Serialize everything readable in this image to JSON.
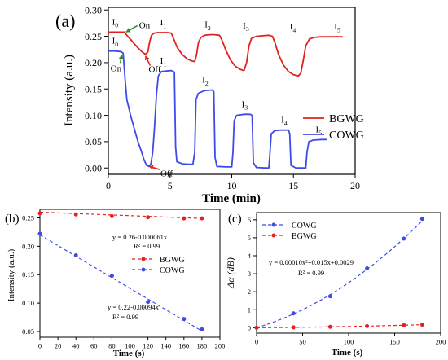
{
  "panels": {
    "a": {
      "label": "(a)"
    },
    "b": {
      "label": "(b)"
    },
    "c": {
      "label": "(c)"
    }
  },
  "colors": {
    "red": "#e3221f",
    "blue": "#3f4be8",
    "green": "#2e8b2e",
    "black": "#000000"
  },
  "chart_data": [
    {
      "id": "a",
      "type": "line",
      "xlabel": "Time (min)",
      "ylabel": "Intensity (a.u.)",
      "xlim": [
        0,
        20
      ],
      "ylim": [
        -0.012,
        0.305
      ],
      "xticks": [
        0,
        5,
        10,
        15,
        20
      ],
      "yticks": [
        0.0,
        0.05,
        0.1,
        0.15,
        0.2,
        0.25,
        0.3
      ],
      "ytick_labels": [
        "0.00",
        "0.05",
        "0.10",
        "0.15",
        "0.20",
        "0.25",
        "0.30"
      ],
      "legend_position": "right",
      "series": [
        {
          "name": "BGWG",
          "color": "#e3221f",
          "points": [
            [
              0,
              0.258
            ],
            [
              0.5,
              0.258
            ],
            [
              1.0,
              0.258
            ],
            [
              1.3,
              0.258
            ],
            [
              1.5,
              0.252
            ],
            [
              1.8,
              0.244
            ],
            [
              2.1,
              0.236
            ],
            [
              2.4,
              0.228
            ],
            [
              2.7,
              0.221
            ],
            [
              3.0,
              0.216
            ],
            [
              3.2,
              0.22
            ],
            [
              3.35,
              0.24
            ],
            [
              3.5,
              0.252
            ],
            [
              3.7,
              0.256
            ],
            [
              4.0,
              0.257
            ],
            [
              4.4,
              0.257
            ],
            [
              4.8,
              0.257
            ],
            [
              5.1,
              0.256
            ],
            [
              5.3,
              0.245
            ],
            [
              5.6,
              0.228
            ],
            [
              6.0,
              0.215
            ],
            [
              6.4,
              0.207
            ],
            [
              6.8,
              0.203
            ],
            [
              7.0,
              0.202
            ],
            [
              7.15,
              0.215
            ],
            [
              7.3,
              0.238
            ],
            [
              7.5,
              0.248
            ],
            [
              7.8,
              0.252
            ],
            [
              8.2,
              0.253
            ],
            [
              8.6,
              0.253
            ],
            [
              9.0,
              0.252
            ],
            [
              9.2,
              0.243
            ],
            [
              9.5,
              0.225
            ],
            [
              9.9,
              0.205
            ],
            [
              10.3,
              0.193
            ],
            [
              10.7,
              0.187
            ],
            [
              11.0,
              0.185
            ],
            [
              11.2,
              0.2
            ],
            [
              11.4,
              0.232
            ],
            [
              11.6,
              0.246
            ],
            [
              12.0,
              0.25
            ],
            [
              12.5,
              0.251
            ],
            [
              13.0,
              0.252
            ],
            [
              13.3,
              0.25
            ],
            [
              13.5,
              0.238
            ],
            [
              13.8,
              0.215
            ],
            [
              14.2,
              0.195
            ],
            [
              14.6,
              0.183
            ],
            [
              15.0,
              0.177
            ],
            [
              15.4,
              0.175
            ],
            [
              15.6,
              0.18
            ],
            [
              15.8,
              0.205
            ],
            [
              16.0,
              0.232
            ],
            [
              16.3,
              0.245
            ],
            [
              16.7,
              0.248
            ],
            [
              17.2,
              0.249
            ],
            [
              18.0,
              0.249
            ],
            [
              19.0,
              0.249
            ]
          ]
        },
        {
          "name": "COWG",
          "color": "#3f4be8",
          "points": [
            [
              0,
              0.222
            ],
            [
              0.5,
              0.222
            ],
            [
              1.0,
              0.221
            ],
            [
              1.2,
              0.218
            ],
            [
              1.35,
              0.17
            ],
            [
              1.5,
              0.13
            ],
            [
              1.8,
              0.1
            ],
            [
              2.1,
              0.075
            ],
            [
              2.4,
              0.05
            ],
            [
              2.7,
              0.03
            ],
            [
              2.9,
              0.015
            ],
            [
              3.1,
              0.005
            ],
            [
              3.3,
              0.003
            ],
            [
              3.45,
              0.008
            ],
            [
              3.6,
              0.03
            ],
            [
              3.75,
              0.08
            ],
            [
              3.9,
              0.14
            ],
            [
              4.05,
              0.175
            ],
            [
              4.3,
              0.183
            ],
            [
              4.7,
              0.184
            ],
            [
              5.1,
              0.185
            ],
            [
              5.35,
              0.182
            ],
            [
              5.45,
              0.04
            ],
            [
              5.55,
              0.012
            ],
            [
              6.0,
              0.008
            ],
            [
              6.5,
              0.007
            ],
            [
              6.85,
              0.007
            ],
            [
              7.0,
              0.03
            ],
            [
              7.1,
              0.13
            ],
            [
              7.3,
              0.142
            ],
            [
              7.8,
              0.147
            ],
            [
              8.4,
              0.148
            ],
            [
              8.55,
              0.145
            ],
            [
              8.65,
              0.02
            ],
            [
              8.8,
              0.003
            ],
            [
              9.5,
              0.002
            ],
            [
              10.0,
              0.002
            ],
            [
              10.1,
              0.03
            ],
            [
              10.2,
              0.09
            ],
            [
              10.4,
              0.1
            ],
            [
              11.0,
              0.102
            ],
            [
              11.5,
              0.102
            ],
            [
              11.65,
              0.1
            ],
            [
              11.75,
              0.01
            ],
            [
              12.0,
              0.001
            ],
            [
              12.7,
              0.0
            ],
            [
              13.0,
              0.0
            ],
            [
              13.1,
              0.03
            ],
            [
              13.2,
              0.065
            ],
            [
              13.5,
              0.071
            ],
            [
              14.0,
              0.072
            ],
            [
              14.6,
              0.072
            ],
            [
              14.7,
              0.065
            ],
            [
              14.8,
              0.005
            ],
            [
              15.2,
              0.0
            ],
            [
              15.8,
              0.0
            ],
            [
              16.0,
              0.0
            ],
            [
              16.1,
              0.03
            ],
            [
              16.25,
              0.05
            ],
            [
              16.6,
              0.053
            ],
            [
              17.3,
              0.054
            ],
            [
              17.7,
              0.054
            ]
          ]
        }
      ],
      "annotations": {
        "red_levels": [
          {
            "base": "I",
            "sub": "0",
            "x": 0.5,
            "y": 0.258
          },
          {
            "base": "I",
            "sub": "1",
            "x": 4.4,
            "y": 0.257
          },
          {
            "base": "I",
            "sub": "2",
            "x": 8.0,
            "y": 0.253
          },
          {
            "base": "I",
            "sub": "3",
            "x": 11.1,
            "y": 0.251
          },
          {
            "base": "I",
            "sub": "4",
            "x": 14.9,
            "y": 0.249
          },
          {
            "base": "I",
            "sub": "5",
            "x": 18.5,
            "y": 0.249
          }
        ],
        "blue_levels": [
          {
            "base": "I",
            "sub": "0",
            "x": 0.5,
            "y": 0.222
          },
          {
            "base": "I",
            "sub": "1",
            "x": 4.4,
            "y": 0.184
          },
          {
            "base": "I",
            "sub": "2",
            "x": 7.8,
            "y": 0.148
          },
          {
            "base": "I",
            "sub": "3",
            "x": 11.0,
            "y": 0.102
          },
          {
            "base": "I",
            "sub": "4",
            "x": 14.2,
            "y": 0.072
          },
          {
            "base": "I",
            "sub": "5",
            "x": 17.0,
            "y": 0.054
          }
        ],
        "on_off": [
          {
            "text": "On",
            "x": 1.3,
            "y": 0.258,
            "color": "#2e8b2e",
            "dir": "left"
          },
          {
            "text": "Off",
            "x": 3.0,
            "y": 0.216,
            "color": "#e3221f",
            "dir": "down"
          },
          {
            "text": "On",
            "x": 1.1,
            "y": 0.218,
            "color": "#2e8b2e",
            "dir": "down"
          },
          {
            "text": "Off",
            "x": 3.3,
            "y": 0.003,
            "color": "#e3221f",
            "dir": "right"
          }
        ]
      }
    },
    {
      "id": "b",
      "type": "scatter",
      "xlabel": "Time (s)",
      "ylabel": "Intensity (a.u.)",
      "xlim": [
        0,
        200
      ],
      "ylim": [
        0.04,
        0.265
      ],
      "xticks": [
        0,
        20,
        40,
        60,
        80,
        100,
        120,
        140,
        160,
        180,
        200
      ],
      "yticks": [
        0.05,
        0.1,
        0.15,
        0.2,
        0.25
      ],
      "ytick_labels": [
        "0.05",
        "0.10",
        "0.15",
        "0.20",
        "0.25"
      ],
      "legend_position": "right",
      "series": [
        {
          "name": "BGWG",
          "color": "#e3221f",
          "x": [
            0,
            40,
            80,
            120,
            160,
            180
          ],
          "y": [
            0.258,
            0.256,
            0.253,
            0.251,
            0.249,
            0.249
          ],
          "fit": {
            "type": "linear",
            "intercept": 0.26,
            "slope": -6.1e-05
          },
          "fit_label": "y = 0.26-0.000061x",
          "r2_label": "R² = 0.99"
        },
        {
          "name": "COWG",
          "color": "#3f4be8",
          "x": [
            0,
            40,
            80,
            120,
            160,
            180
          ],
          "y": [
            0.222,
            0.184,
            0.148,
            0.102,
            0.072,
            0.054
          ],
          "fit": {
            "type": "linear",
            "intercept": 0.22,
            "slope": -0.00094
          },
          "fit_label": "y = 0.22-0.00094x",
          "r2_label": "R² = 0.99"
        }
      ]
    },
    {
      "id": "c",
      "type": "scatter",
      "xlabel": "Time (s)",
      "ylabel": "Δα (dB)",
      "xlim": [
        0,
        200
      ],
      "ylim": [
        -0.3,
        6.4
      ],
      "xticks": [
        0,
        50,
        100,
        150,
        200
      ],
      "yticks": [
        0,
        1,
        2,
        3,
        4,
        5,
        6
      ],
      "ytick_labels": [
        "0",
        "1",
        "2",
        "3",
        "4",
        "5",
        "6"
      ],
      "legend_position": "top-left",
      "series": [
        {
          "name": "COWG",
          "color": "#3f4be8",
          "x": [
            0,
            40,
            80,
            120,
            160,
            180
          ],
          "y": [
            0.0,
            0.8,
            1.75,
            3.3,
            4.95,
            6.05
          ],
          "fit": {
            "type": "quadratic",
            "a": 0.0001,
            "b": 0.015,
            "c": 0.0029
          },
          "fit_label": "y = 0.00010x²+0.015x+0.0029",
          "r2_label": "R² = 0.99"
        },
        {
          "name": "BGWG",
          "color": "#e3221f",
          "x": [
            0,
            40,
            80,
            120,
            160,
            180
          ],
          "y": [
            0.0,
            0.02,
            0.05,
            0.09,
            0.14,
            0.17
          ]
        }
      ]
    }
  ]
}
